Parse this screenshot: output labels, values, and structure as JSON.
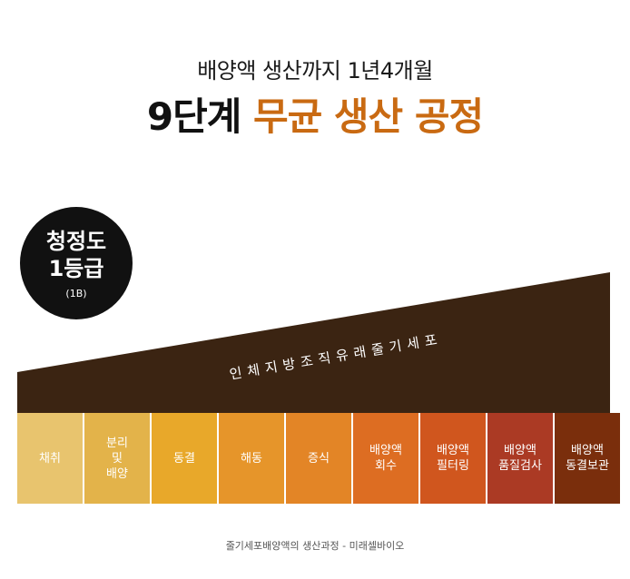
{
  "header": {
    "subtitle": "배양액 생산까지 1년4개월",
    "title_prefix": "9단계",
    "title_accent": "무균 생산 공정"
  },
  "grade_badge": {
    "line1": "청정도",
    "line2": "1등급",
    "note": "(1B)"
  },
  "banner": {
    "label": "인체지방조직유래줄기세포"
  },
  "steps": [
    {
      "label": "채취",
      "color": "#e8c46e"
    },
    {
      "label": "분리\n및\n배양",
      "color": "#e3b34a"
    },
    {
      "label": "동결",
      "color": "#e8a82a"
    },
    {
      "label": "해동",
      "color": "#e6952a"
    },
    {
      "label": "증식",
      "color": "#e38526"
    },
    {
      "label": "배양액\n회수",
      "color": "#dd6d22"
    },
    {
      "label": "배양액\n필터링",
      "color": "#d0561e"
    },
    {
      "label": "배양액\n품질검사",
      "color": "#ab3a24"
    },
    {
      "label": "배양액\n동결보관",
      "color": "#7a2e0c"
    }
  ],
  "colors": {
    "ramp": "#3b2412",
    "accent": "#c96a12",
    "badge": "#111111"
  },
  "caption": "줄기세포배양액의 생산과정 - 미래셀바이오"
}
